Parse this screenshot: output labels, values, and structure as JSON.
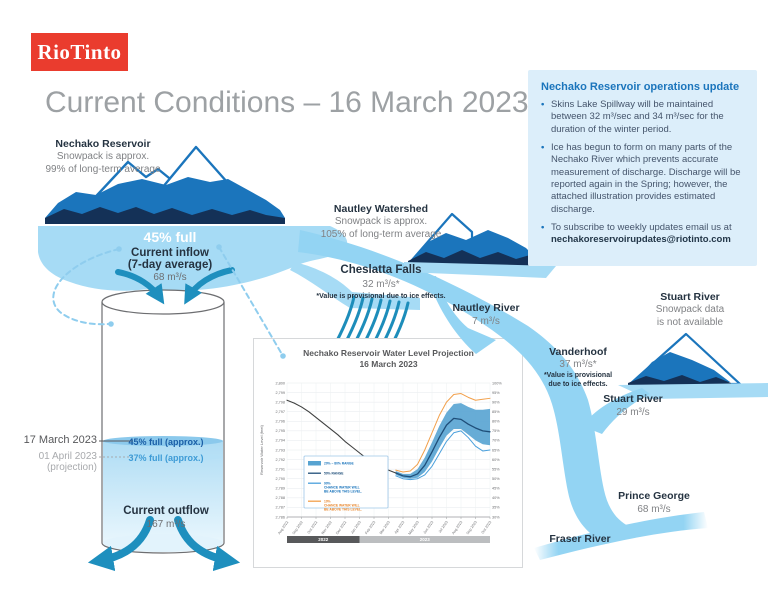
{
  "logo": {
    "text": "RioTinto"
  },
  "page_title": "Current Conditions – 16 March 2023",
  "update_panel": {
    "title": "Nechako Reservoir operations update",
    "bullets": [
      "Skins Lake Spillway will be maintained between 32 m³/sec and 34 m³/sec for the duration of the winter period.",
      "Ice has begun to form on many parts of the Nechako River which prevents accurate measurement of discharge. Discharge will be reported again in the Spring; however, the attached illustration provides estimated discharge.",
      "To subscribe to weekly updates email us at"
    ],
    "email": "nechakoreservoirupdates@riotinto.com"
  },
  "reservoir": {
    "name": "Nechako Reservoir",
    "snowpack_line1": "Snowpack is approx.",
    "snowpack_line2": "99% of long-term average",
    "fill_label": "45% full",
    "inflow_title": "Current inflow",
    "inflow_sub": "(7-day average)",
    "inflow_value": "68 m³/s"
  },
  "nautley_watershed": {
    "name": "Nautley Watershed",
    "snowpack_line1": "Snowpack is approx.",
    "snowpack_line2": "105% of long-term average"
  },
  "stuart_snowpack": {
    "name": "Stuart River",
    "line1": "Snowpack data",
    "line2": "is not available"
  },
  "cheslatta": {
    "name": "Cheslatta Falls",
    "value": "32 m³/s*",
    "note": "*Value is provisional due to ice effects."
  },
  "nautley_river": {
    "name": "Nautley River",
    "value": "7 m³/s"
  },
  "vanderhoof": {
    "name": "Vanderhoof",
    "value": "37 m³/s*",
    "note1": "*Value is provisional",
    "note2": "due to ice effects."
  },
  "stuart_river": {
    "name": "Stuart River",
    "value": "29 m³/s"
  },
  "prince_george": {
    "name": "Prince George",
    "value": "68 m³/s"
  },
  "fraser_river": {
    "name": "Fraser River"
  },
  "tank": {
    "date_current": "17 March 2023",
    "level_current": "45% full (approx.)",
    "date_projection": "01 April 2023",
    "projection_label": "(projection)",
    "level_projection": "37% full (approx.)",
    "outflow_title": "Current outflow",
    "outflow_value": "167 m³/s"
  },
  "chart_data": {
    "type": "line",
    "title": "Nechako Reservoir Water Level Projection",
    "subtitle": "16 March 2023",
    "ylabel": "Reservoir Water Level (feet)",
    "ylim": [
      2786,
      2800
    ],
    "xlim": [
      0,
      14
    ],
    "grid": true,
    "legend_position": "lower-left",
    "yticks_left": [
      "2,800",
      "2,799",
      "2,798",
      "2,797",
      "2,796",
      "2,795",
      "2,794",
      "2,793",
      "2,792",
      "2,791",
      "2,790",
      "2,789",
      "2,788",
      "2,787",
      "2,786"
    ],
    "yticks_right": [
      "100%",
      "95%",
      "90%",
      "85%",
      "80%",
      "75%",
      "70%",
      "65%",
      "60%",
      "55%",
      "50%",
      "45%",
      "40%",
      "35%",
      "30%"
    ],
    "x_ticks": [
      "Aug 2022",
      "Sep 2022",
      "Oct 2022",
      "Nov 2022",
      "Dec 2022",
      "Jan 2023",
      "Feb 2023",
      "Mar 2023",
      "Apr 2023",
      "May 2023",
      "Jun 2023",
      "Jul 2023",
      "Aug 2023",
      "Sep 2023",
      "Oct 2023"
    ],
    "year_bands": [
      {
        "label": "2022",
        "from": 0,
        "to": 5,
        "color": "#58595b"
      },
      {
        "label": "2023",
        "from": 5,
        "to": 14,
        "color": "#bcbec0"
      }
    ],
    "band": {
      "name": "20% – 80% RANGE",
      "color": "#57a3d1",
      "x": [
        7.5,
        8,
        8.5,
        9,
        9.5,
        10,
        10.5,
        11,
        11.5,
        12,
        12.5,
        13,
        13.5,
        14
      ],
      "upper": [
        2790.8,
        2790.5,
        2790.5,
        2791.0,
        2792.2,
        2793.8,
        2795.5,
        2796.9,
        2797.8,
        2797.9,
        2797.5,
        2797.2,
        2797.2,
        2797.3
      ],
      "lower": [
        2790.4,
        2790.1,
        2790.0,
        2790.1,
        2790.7,
        2791.8,
        2793.2,
        2794.5,
        2795.2,
        2795.2,
        2794.6,
        2794.0,
        2793.6,
        2793.5
      ]
    },
    "series": [
      {
        "name": "Observed water level",
        "color": "#3f4040",
        "width": 1.1,
        "x": [
          0,
          0.5,
          1,
          1.5,
          2,
          2.5,
          3,
          3.5,
          4,
          4.5,
          5,
          5.5,
          6,
          6.5,
          7,
          7.5
        ],
        "y": [
          2798.2,
          2797.9,
          2797.5,
          2797.0,
          2796.4,
          2795.8,
          2795.2,
          2794.6,
          2793.9,
          2793.3,
          2792.7,
          2792.1,
          2791.6,
          2791.2,
          2790.9,
          2790.6
        ]
      },
      {
        "name": "50% RANGE",
        "color": "#1f4e79",
        "width": 1.3,
        "x": [
          7.5,
          8,
          8.5,
          9,
          9.5,
          10,
          10.5,
          11,
          11.5,
          12,
          12.5,
          13,
          13.5,
          14
        ],
        "y": [
          2790.6,
          2790.3,
          2790.2,
          2790.5,
          2791.4,
          2792.8,
          2794.3,
          2795.6,
          2796.3,
          2796.2,
          2795.7,
          2795.3,
          2795.0,
          2794.9
        ]
      },
      {
        "name": "90% CHANCE WATER WILL BE ABOVE THIS LEVEL.",
        "color": "#4aa0dc",
        "width": 1,
        "x": [
          7.5,
          8,
          8.5,
          9,
          9.5,
          10,
          10.5,
          11,
          11.5,
          12,
          12.5,
          13,
          13.5,
          14
        ],
        "y": [
          2790.3,
          2790.0,
          2789.9,
          2790.0,
          2790.4,
          2791.3,
          2792.6,
          2793.9,
          2794.8,
          2795.0,
          2794.3,
          2793.4,
          2792.9,
          2793.0
        ]
      },
      {
        "name": "10% CHANCE WATER WILL BE ABOVE THIS LEVEL.",
        "color": "#f2a04b",
        "width": 1,
        "x": [
          7.5,
          8,
          8.5,
          9,
          9.5,
          10,
          10.5,
          11,
          11.5,
          12,
          12.5,
          13,
          13.5,
          14
        ],
        "y": [
          2790.9,
          2790.7,
          2790.8,
          2791.5,
          2793.0,
          2794.8,
          2796.6,
          2798.0,
          2798.8,
          2798.9,
          2798.5,
          2798.2,
          2798.3,
          2798.4
        ]
      }
    ],
    "legend": [
      {
        "swatch": "band",
        "label": "20% – 80% RANGE",
        "color": "#57a3d1",
        "text_color": "#1b75bc"
      },
      {
        "swatch": "line",
        "label": "50% RANGE",
        "color": "#1f4e79",
        "text_color": "#1f4e79"
      },
      {
        "swatch": "line",
        "label": "90%\nCHANCE WATER WILL\nBE ABOVE THIS LEVEL.",
        "color": "#4aa0dc",
        "text_color": "#1b75bc"
      },
      {
        "swatch": "line",
        "label": "10%\nCHANCE WATER WILL\nBE ABOVE THIS LEVEL.",
        "color": "#f2a04b",
        "text_color": "#e8872e"
      }
    ]
  },
  "colors": {
    "brand_red": "#ea3c2e",
    "mountain_blue": "#1b75bc",
    "mountain_navy": "#143157",
    "water_light": "#a6dbf5",
    "river_blue": "#93d4f3",
    "arrow_teal": "#1e8fbe",
    "panel_bg": "#dceefa",
    "accent_blue": "#1b75bc"
  }
}
